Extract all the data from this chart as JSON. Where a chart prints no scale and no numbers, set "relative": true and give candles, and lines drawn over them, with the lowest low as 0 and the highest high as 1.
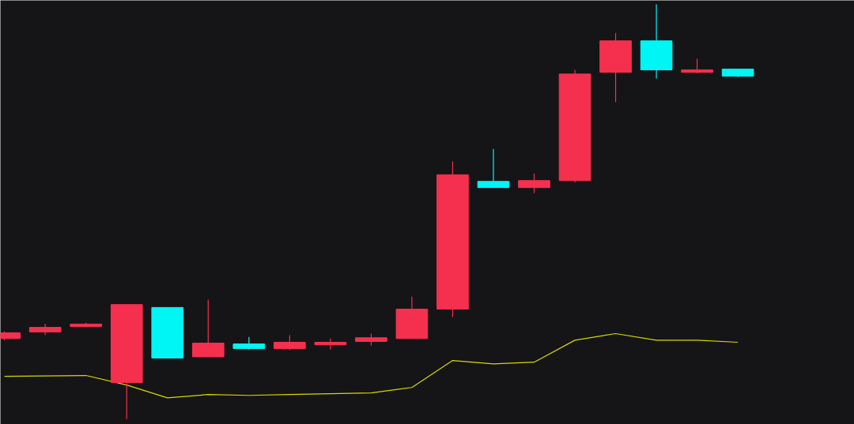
{
  "chart_data": {
    "type": "candlestick",
    "relative": true,
    "categories": [
      null,
      null,
      null,
      null,
      null,
      null,
      null,
      null,
      null,
      null,
      null,
      null,
      null,
      null,
      null,
      null,
      null,
      null,
      null
    ],
    "ohlc": [
      [
        0.194,
        0.211,
        0.19,
        0.208
      ],
      [
        0.21,
        0.23,
        0.202,
        0.221
      ],
      [
        0.223,
        0.232,
        0.221,
        0.229
      ],
      [
        0.088,
        0.276,
        0,
        0.276
      ],
      [
        0.269,
        0.269,
        0.147,
        0.147
      ],
      [
        0.15,
        0.288,
        0.15,
        0.183
      ],
      [
        0.181,
        0.198,
        0.168,
        0.17
      ],
      [
        0.17,
        0.202,
        0.166,
        0.185
      ],
      [
        0.179,
        0.194,
        0.168,
        0.185
      ],
      [
        0.187,
        0.206,
        0.177,
        0.196
      ],
      [
        0.194,
        0.295,
        0.194,
        0.265
      ],
      [
        0.265,
        0.621,
        0.246,
        0.589
      ],
      [
        0.573,
        0.651,
        0.558,
        0.558
      ],
      [
        0.558,
        0.592,
        0.545,
        0.575
      ],
      [
        0.575,
        0.842,
        0.57,
        0.832
      ],
      [
        0.836,
        0.931,
        0.764,
        0.912
      ],
      [
        0.912,
        1,
        0.821,
        0.842
      ],
      [
        0.836,
        0.869,
        0.834,
        0.842
      ],
      [
        0.844,
        0.844,
        0.825,
        0.827
      ]
    ],
    "colors": [
      "#f5304f",
      "#f5304f",
      "#f5304f",
      "#f5304f",
      "#00f5f5",
      "#f5304f",
      "#00f5f5",
      "#f5304f",
      "#f5304f",
      "#f5304f",
      "#f5304f",
      "#f5304f",
      "#00f5f5",
      "#f5304f",
      "#f5304f",
      "#f5304f",
      "#00f5f5",
      "#f5304f",
      "#00f5f5"
    ],
    "series": [
      {
        "type": "line",
        "color": "#d8d800",
        "values": [
          0.103,
          0.104,
          0.105,
          0.082,
          0.051,
          0.059,
          0.057,
          0.059,
          0.061,
          0.063,
          0.076,
          0.141,
          0.133,
          0.137,
          0.19,
          0.206,
          0.19,
          0.19,
          0.185
        ]
      }
    ]
  }
}
